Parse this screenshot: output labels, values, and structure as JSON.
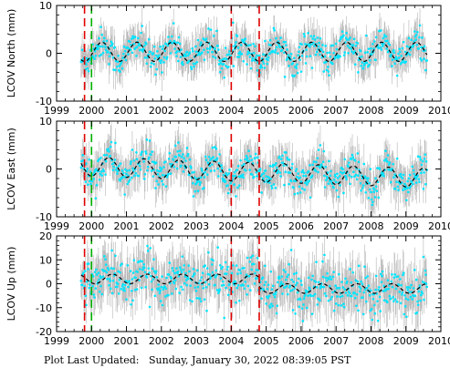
{
  "footer": {
    "label": "Plot Last Updated:",
    "timestamp": "Sunday, January 30, 2022 08:39:05 PST"
  },
  "colors": {
    "data_points": "#00e5ff",
    "error_bars": "#b4b4b4",
    "model_fit": "#000000",
    "event_red": "#e00000",
    "event_green": "#00b000"
  },
  "chart_data": [
    {
      "type": "scatter",
      "station": "LCOV",
      "component": "North",
      "ylabel": "LCOV North (mm)",
      "xlim": [
        1999,
        2010
      ],
      "ylim": [
        -10,
        10
      ],
      "xticks": [
        "1999",
        "2000",
        "2001",
        "2002",
        "2003",
        "2004",
        "2005",
        "2006",
        "2007",
        "2008",
        "2009",
        "2010"
      ],
      "yticks": [
        "-10",
        "0",
        "10"
      ],
      "event_lines": [
        {
          "x": 1999.8,
          "color": "red"
        },
        {
          "x": 2000.0,
          "color": "green"
        },
        {
          "x": 2004.0,
          "color": "red"
        },
        {
          "x": 2004.8,
          "color": "red"
        }
      ],
      "data_start": 1999.7,
      "data_end": 2009.6,
      "model": {
        "offset": 0.3,
        "annual_amplitude": 2.0,
        "phase_peak": 0.3,
        "trend_per_year": 0.0
      },
      "scatter_spread_mm": 1.6,
      "error_bar_mm": 3.0
    },
    {
      "type": "scatter",
      "station": "LCOV",
      "component": "East",
      "ylabel": "LCOV East (mm)",
      "xlim": [
        1999,
        2010
      ],
      "ylim": [
        -10,
        10
      ],
      "xticks": [
        "1999",
        "2000",
        "2001",
        "2002",
        "2003",
        "2004",
        "2005",
        "2006",
        "2007",
        "2008",
        "2009",
        "2010"
      ],
      "yticks": [
        "-10",
        "0",
        "10"
      ],
      "event_lines": [
        {
          "x": 1999.8,
          "color": "red"
        },
        {
          "x": 2000.0,
          "color": "green"
        },
        {
          "x": 2004.0,
          "color": "red"
        },
        {
          "x": 2004.8,
          "color": "red"
        }
      ],
      "data_start": 1999.7,
      "data_end": 2009.6,
      "model": {
        "offset": 0.5,
        "annual_amplitude": 2.0,
        "phase_peak": 0.5,
        "trend_per_year": -0.25
      },
      "scatter_spread_mm": 1.8,
      "error_bar_mm": 3.2
    },
    {
      "type": "scatter",
      "station": "LCOV",
      "component": "Up",
      "ylabel": "LCOV Up (mm)",
      "xlim": [
        1999,
        2010
      ],
      "ylim": [
        -20,
        20
      ],
      "xticks": [
        "1999",
        "2000",
        "2001",
        "2002",
        "2003",
        "2004",
        "2005",
        "2006",
        "2007",
        "2008",
        "2009",
        "2010"
      ],
      "yticks": [
        "-20",
        "-10",
        "0",
        "10",
        "20"
      ],
      "event_lines": [
        {
          "x": 1999.8,
          "color": "red"
        },
        {
          "x": 2000.0,
          "color": "green"
        },
        {
          "x": 2004.0,
          "color": "red"
        },
        {
          "x": 2004.8,
          "color": "red"
        }
      ],
      "data_start": 1999.7,
      "data_end": 2009.6,
      "model": {
        "offset": 2.0,
        "annual_amplitude": 2.0,
        "phase_peak": 0.6,
        "trend_per_year": 0.0,
        "step_at": 2004.8,
        "step_mm": -4.0
      },
      "scatter_spread_mm": 4.5,
      "error_bar_mm": 8.0
    }
  ]
}
